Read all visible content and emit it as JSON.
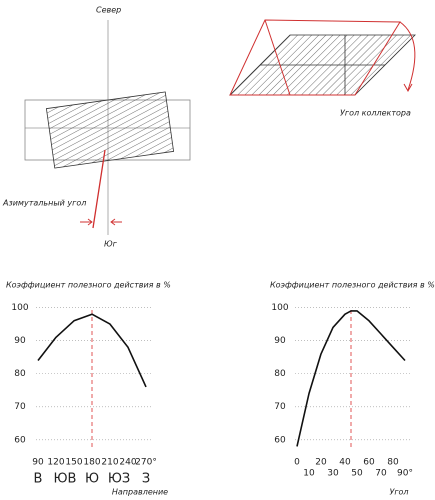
{
  "diagrams": {
    "north": "Север",
    "south": "Юг",
    "azimuth": "Азимутальный угол",
    "collector_angle": "Угол коллектора"
  },
  "chart_data": [
    {
      "type": "line",
      "title": "Коэффициент полезного действия в %",
      "x": [
        90,
        120,
        150,
        180,
        210,
        240,
        270
      ],
      "series": [
        {
          "color": "#111111",
          "values": [
            84,
            91,
            96,
            98,
            95,
            88,
            76
          ]
        }
      ],
      "xlim": [
        80,
        280
      ],
      "xticks": [
        90,
        120,
        150,
        180,
        210,
        240,
        {
          "value": 270,
          "label": "270°"
        }
      ],
      "directions": [
        {
          "value": 90,
          "label": "В"
        },
        {
          "value": 135,
          "label": "ЮВ"
        },
        {
          "value": 180,
          "label": "Ю"
        },
        {
          "value": 225,
          "label": "ЮЗ"
        },
        {
          "value": 270,
          "label": "З"
        }
      ],
      "marker_x": 180,
      "marker_color": "#e05555",
      "ylim": [
        56,
        102
      ],
      "yticks": [
        60,
        70,
        80,
        90,
        100
      ],
      "grid": true,
      "xlabel": "Направление"
    },
    {
      "type": "line",
      "title": "Коэффициент полезного действия в %",
      "x": [
        0,
        10,
        20,
        30,
        40,
        45,
        50,
        60,
        70,
        80,
        90
      ],
      "series": [
        {
          "color": "#111111",
          "values": [
            58,
            74,
            86,
            94,
            98,
            99,
            99,
            96,
            92,
            88,
            84
          ]
        }
      ],
      "xlim": [
        -5,
        95
      ],
      "xticks": [
        0,
        10,
        20,
        30,
        40,
        50,
        60,
        70,
        80,
        {
          "value": 90,
          "label": "90°"
        }
      ],
      "marker_x": 45,
      "marker_color": "#e05555",
      "ylim": [
        56,
        102
      ],
      "yticks": [
        60,
        70,
        80,
        90,
        100
      ],
      "grid": true,
      "xlabel": "Угол"
    }
  ]
}
